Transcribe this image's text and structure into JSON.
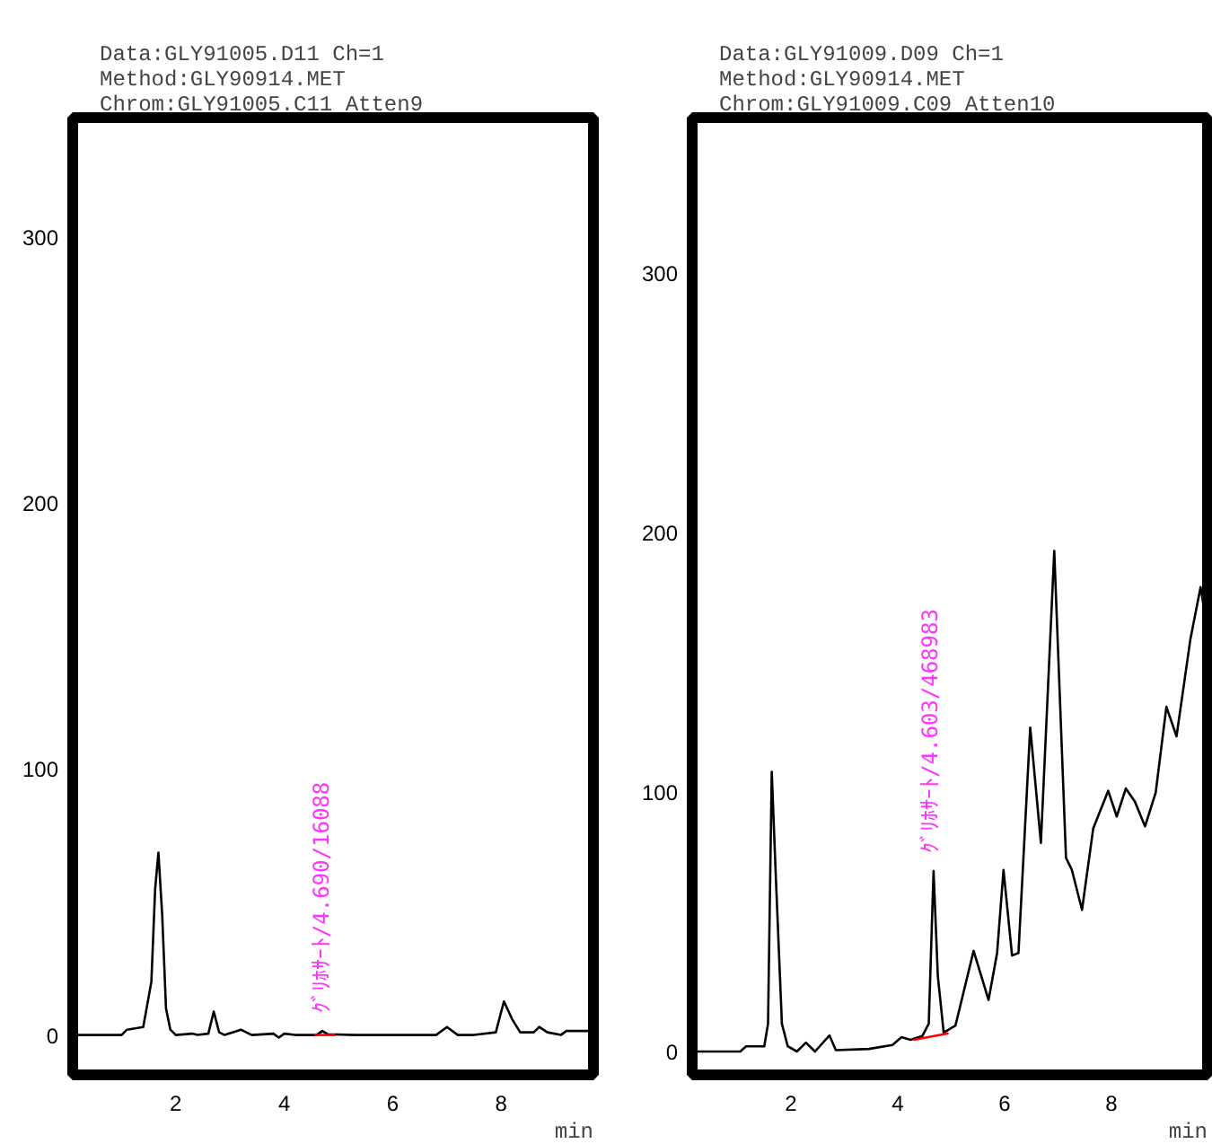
{
  "chart_data": [
    {
      "type": "line",
      "title": "Data:GLY91005.D11  Ch=1\nMethod:GLY90914.MET\nChrom:GLY91005.C11  Atten9",
      "xlabel": "min",
      "xlim": [
        0.1,
        9.7
      ],
      "ylim": [
        -15,
        345
      ],
      "xticks": [
        2,
        4,
        6,
        8
      ],
      "yticks": [
        0,
        100,
        200,
        300
      ],
      "grid": false,
      "series": [
        {
          "color": "#000000",
          "x": [
            0.1,
            1.0,
            1.1,
            1.4,
            1.55,
            1.62,
            1.68,
            1.75,
            1.82,
            1.9,
            2.0,
            2.3,
            2.4,
            2.6,
            2.7,
            2.8,
            2.9,
            3.2,
            3.4,
            3.8,
            3.9,
            4.0,
            4.2,
            4.6,
            4.7,
            4.8,
            5.3,
            6.8,
            7.0,
            7.2,
            7.5,
            7.9,
            8.05,
            8.2,
            8.35,
            8.6,
            8.7,
            8.85,
            9.1,
            9.2,
            9.7
          ],
          "values": [
            0,
            0,
            2,
            3,
            20,
            55,
            68.6,
            45,
            10,
            2,
            0,
            0.5,
            0,
            0.5,
            8.8,
            1,
            0,
            2,
            0,
            0.5,
            -1,
            0.5,
            0,
            0,
            1.5,
            0.3,
            0,
            0,
            3,
            0,
            0,
            1,
            12.6,
            6,
            1,
            1,
            3,
            1,
            0,
            1.5,
            1.5
          ]
        },
        {
          "color": "#ff0000",
          "x": [
            4.55,
            4.95
          ],
          "values": [
            0,
            0
          ]
        }
      ],
      "annotations": [
        {
          "text": "ｸﾞﾘﾎｻｰﾄ/4.690/16088",
          "x": 4.69,
          "y": 1.5
        }
      ]
    },
    {
      "type": "line",
      "title": "Data:GLY91009.D09  Ch=1\nMethod:GLY90914.MET\nChrom:GLY91009.C09  Atten10",
      "xlabel": "min",
      "xlim": [
        0.15,
        9.8
      ],
      "ylim": [
        -9,
        360
      ],
      "xticks": [
        2,
        4,
        6,
        8
      ],
      "yticks": [
        0,
        100,
        200,
        300
      ],
      "grid": false,
      "series": [
        {
          "color": "#000000",
          "x": [
            0.21,
            1.05,
            1.16,
            1.5,
            1.57,
            1.64,
            1.72,
            1.83,
            1.94,
            2.11,
            2.28,
            2.45,
            2.72,
            2.84,
            3.46,
            3.9,
            4.07,
            4.24,
            4.46,
            4.58,
            4.67,
            4.75,
            4.86,
            5.08,
            5.25,
            5.42,
            5.7,
            5.86,
            5.98,
            6.14,
            6.26,
            6.48,
            6.68,
            6.93,
            7.15,
            7.26,
            7.45,
            7.66,
            7.94,
            8.1,
            8.27,
            8.44,
            8.63,
            8.83,
            9.03,
            9.22,
            9.48,
            9.67,
            9.8
          ],
          "values": [
            0,
            0,
            2,
            2,
            10.7,
            107.8,
            65.5,
            10.7,
            2,
            0,
            3.4,
            0,
            6.2,
            0.5,
            1,
            2.5,
            5.5,
            4.5,
            6,
            10.7,
            69.6,
            29,
            7.3,
            10,
            24.4,
            38.8,
            19.9,
            38,
            70,
            37,
            38,
            124.9,
            80.4,
            193,
            74.7,
            70,
            54.6,
            86,
            100.5,
            90.6,
            101.4,
            96.3,
            86.8,
            99.8,
            132.9,
            121.5,
            159,
            179,
            162.6
          ]
        },
        {
          "color": "#ff0000",
          "x": [
            4.3,
            4.95
          ],
          "values": [
            4.5,
            7
          ]
        }
      ],
      "annotations": [
        {
          "text": "ｸﾞﾘﾎｻｰﾄ/4.603/468983",
          "x": 4.603,
          "y": 69.6
        }
      ]
    }
  ]
}
